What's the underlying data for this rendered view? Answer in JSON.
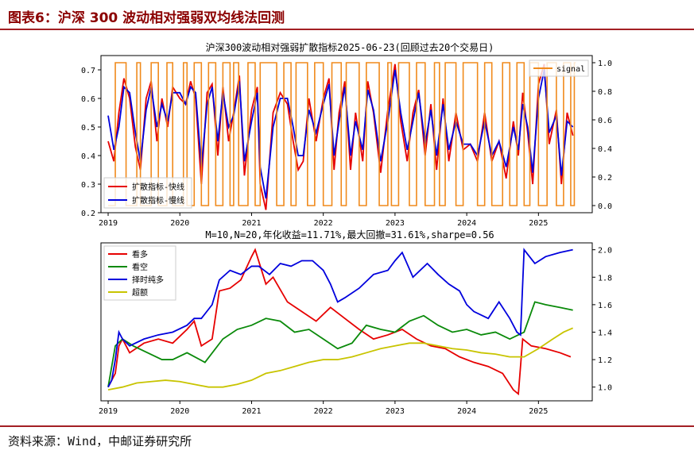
{
  "figure": {
    "title": "图表6：沪深 300 波动相对强弱双均线法回测",
    "source": "资料来源：Wind，中邮证券研究所"
  },
  "colors": {
    "brand_red": "#a31f24",
    "red": "#e60000",
    "blue": "#0000dd",
    "orange": "#f08a1c",
    "green": "#0a8a0a",
    "olive": "#c8c400"
  },
  "chart_data": [
    {
      "type": "line",
      "title": "沪深300波动相对强弱扩散指标2025-06-23(回顾过去20个交易日)",
      "x_ticks": [
        "2019",
        "2020",
        "2021",
        "2022",
        "2023",
        "2024",
        "2025"
      ],
      "xlim": [
        2018.9,
        2025.75
      ],
      "ylim_left": [
        0.2,
        0.75
      ],
      "ylim_right": [
        -0.05,
        1.05
      ],
      "y_ticks_left": [
        "0.2",
        "0.3",
        "0.4",
        "0.5",
        "0.6",
        "0.7"
      ],
      "y_ticks_right": [
        "0.0",
        "0.2",
        "0.4",
        "0.6",
        "0.8",
        "1.0"
      ],
      "legend_left": [
        "扩散指标-快线",
        "扩散指标-慢线"
      ],
      "legend_right": [
        "signal"
      ],
      "series": [
        {
          "name": "扩散指标-快线",
          "color": "red",
          "x": [
            2019.0,
            2019.08,
            2019.15,
            2019.22,
            2019.3,
            2019.38,
            2019.45,
            2019.53,
            2019.6,
            2019.68,
            2019.75,
            2019.83,
            2019.9,
            2020.0,
            2020.08,
            2020.15,
            2020.22,
            2020.3,
            2020.38,
            2020.45,
            2020.53,
            2020.6,
            2020.68,
            2020.75,
            2020.83,
            2020.9,
            2021.0,
            2021.08,
            2021.12,
            2021.2,
            2021.3,
            2021.4,
            2021.5,
            2021.58,
            2021.65,
            2021.72,
            2021.8,
            2021.9,
            2022.0,
            2022.08,
            2022.15,
            2022.22,
            2022.3,
            2022.38,
            2022.45,
            2022.55,
            2022.62,
            2022.7,
            2022.8,
            2022.9,
            2023.0,
            2023.08,
            2023.17,
            2023.25,
            2023.33,
            2023.42,
            2023.5,
            2023.58,
            2023.67,
            2023.75,
            2023.85,
            2023.95,
            2024.05,
            2024.15,
            2024.25,
            2024.35,
            2024.45,
            2024.55,
            2024.65,
            2024.72,
            2024.78,
            2024.85,
            2024.92,
            2025.0,
            2025.08,
            2025.15,
            2025.25,
            2025.32,
            2025.4,
            2025.48
          ],
          "y": [
            0.45,
            0.38,
            0.55,
            0.67,
            0.6,
            0.43,
            0.35,
            0.6,
            0.66,
            0.45,
            0.6,
            0.5,
            0.64,
            0.6,
            0.58,
            0.66,
            0.6,
            0.3,
            0.62,
            0.65,
            0.4,
            0.64,
            0.45,
            0.55,
            0.68,
            0.33,
            0.56,
            0.64,
            0.3,
            0.21,
            0.55,
            0.62,
            0.58,
            0.45,
            0.35,
            0.38,
            0.6,
            0.45,
            0.6,
            0.67,
            0.35,
            0.55,
            0.66,
            0.35,
            0.55,
            0.38,
            0.66,
            0.55,
            0.34,
            0.56,
            0.72,
            0.52,
            0.38,
            0.55,
            0.63,
            0.4,
            0.58,
            0.35,
            0.6,
            0.38,
            0.55,
            0.42,
            0.44,
            0.38,
            0.55,
            0.38,
            0.45,
            0.32,
            0.52,
            0.4,
            0.62,
            0.48,
            0.3,
            0.65,
            0.72,
            0.44,
            0.56,
            0.3,
            0.55,
            0.47
          ]
        },
        {
          "name": "扩散指标-慢线",
          "color": "blue",
          "x": [
            2019.0,
            2019.08,
            2019.15,
            2019.22,
            2019.3,
            2019.38,
            2019.45,
            2019.53,
            2019.6,
            2019.68,
            2019.75,
            2019.83,
            2019.9,
            2020.0,
            2020.08,
            2020.15,
            2020.22,
            2020.3,
            2020.38,
            2020.45,
            2020.53,
            2020.6,
            2020.68,
            2020.75,
            2020.83,
            2020.9,
            2021.0,
            2021.08,
            2021.12,
            2021.2,
            2021.3,
            2021.4,
            2021.5,
            2021.58,
            2021.65,
            2021.72,
            2021.8,
            2021.9,
            2022.0,
            2022.08,
            2022.15,
            2022.22,
            2022.3,
            2022.38,
            2022.45,
            2022.55,
            2022.62,
            2022.7,
            2022.8,
            2022.9,
            2023.0,
            2023.08,
            2023.17,
            2023.25,
            2023.33,
            2023.42,
            2023.5,
            2023.58,
            2023.67,
            2023.75,
            2023.85,
            2023.95,
            2024.05,
            2024.15,
            2024.25,
            2024.35,
            2024.45,
            2024.55,
            2024.65,
            2024.72,
            2024.78,
            2024.85,
            2024.92,
            2025.0,
            2025.08,
            2025.15,
            2025.25,
            2025.32,
            2025.4,
            2025.48
          ],
          "y": [
            0.54,
            0.42,
            0.5,
            0.64,
            0.62,
            0.48,
            0.38,
            0.56,
            0.64,
            0.5,
            0.58,
            0.52,
            0.62,
            0.62,
            0.58,
            0.64,
            0.62,
            0.36,
            0.58,
            0.64,
            0.45,
            0.62,
            0.5,
            0.54,
            0.66,
            0.38,
            0.52,
            0.62,
            0.36,
            0.25,
            0.5,
            0.6,
            0.6,
            0.5,
            0.4,
            0.4,
            0.56,
            0.48,
            0.58,
            0.65,
            0.4,
            0.52,
            0.64,
            0.4,
            0.52,
            0.42,
            0.63,
            0.56,
            0.38,
            0.52,
            0.7,
            0.55,
            0.42,
            0.52,
            0.62,
            0.44,
            0.56,
            0.4,
            0.58,
            0.42,
            0.52,
            0.44,
            0.44,
            0.4,
            0.52,
            0.4,
            0.45,
            0.36,
            0.5,
            0.42,
            0.58,
            0.5,
            0.34,
            0.6,
            0.7,
            0.48,
            0.54,
            0.33,
            0.52,
            0.5
          ]
        },
        {
          "name": "signal",
          "color": "orange",
          "axis": "right",
          "x": [
            2019.0,
            2019.1,
            2019.25,
            2019.4,
            2019.45,
            2019.6,
            2019.7,
            2019.82,
            2019.9,
            2020.05,
            2020.1,
            2020.2,
            2020.3,
            2020.4,
            2020.5,
            2020.6,
            2020.7,
            2020.75,
            2020.82,
            2020.95,
            2021.05,
            2021.12,
            2021.35,
            2021.45,
            2021.55,
            2021.62,
            2021.78,
            2021.88,
            2022.0,
            2022.12,
            2022.25,
            2022.32,
            2022.5,
            2022.6,
            2022.78,
            2022.9,
            2022.95,
            2023.05,
            2023.2,
            2023.3,
            2023.42,
            2023.55,
            2023.62,
            2023.7,
            2023.85,
            2023.95,
            2024.15,
            2024.25,
            2024.35,
            2024.5,
            2024.6,
            2024.7,
            2024.8,
            2024.88,
            2025.0,
            2025.12,
            2025.25,
            2025.35,
            2025.45,
            2025.5
          ],
          "y": [
            0,
            1,
            0,
            1,
            0,
            1,
            0,
            1,
            0,
            1,
            0,
            1,
            0,
            1,
            0,
            1,
            0,
            1,
            0,
            1,
            0,
            1,
            0,
            1,
            0,
            1,
            0,
            1,
            0,
            1,
            0,
            1,
            0,
            1,
            0,
            1,
            0,
            1,
            0,
            1,
            0,
            1,
            0,
            1,
            0,
            1,
            0,
            1,
            0,
            1,
            0,
            1,
            0,
            1,
            0,
            1,
            0,
            1,
            0,
            1
          ]
        }
      ]
    },
    {
      "type": "line",
      "title": "M=10,N=20,年化收益=11.71%,最大回撤=31.61%,sharpe=0.56",
      "x_ticks": [
        "2019",
        "2020",
        "2021",
        "2022",
        "2023",
        "2024",
        "2025"
      ],
      "xlim": [
        2018.9,
        2025.75
      ],
      "ylim": [
        0.9,
        2.05
      ],
      "y_ticks": [
        "1.0",
        "1.2",
        "1.4",
        "1.6",
        "1.8",
        "2.0"
      ],
      "legend": [
        "看多",
        "看空",
        "择时纯多",
        "超额"
      ],
      "series": [
        {
          "name": "看多",
          "color": "red",
          "x": [
            2019.0,
            2019.05,
            2019.1,
            2019.15,
            2019.2,
            2019.3,
            2019.5,
            2019.7,
            2019.9,
            2020.1,
            2020.2,
            2020.3,
            2020.45,
            2020.55,
            2020.7,
            2020.85,
            2021.0,
            2021.05,
            2021.2,
            2021.3,
            2021.5,
            2021.7,
            2021.9,
            2022.1,
            2022.3,
            2022.5,
            2022.7,
            2022.9,
            2023.1,
            2023.3,
            2023.5,
            2023.7,
            2023.9,
            2024.1,
            2024.3,
            2024.5,
            2024.65,
            2024.72,
            2024.78,
            2024.9,
            2025.1,
            2025.3,
            2025.45
          ],
          "y": [
            1.0,
            1.05,
            1.1,
            1.3,
            1.35,
            1.25,
            1.32,
            1.35,
            1.32,
            1.42,
            1.48,
            1.3,
            1.35,
            1.7,
            1.72,
            1.78,
            1.95,
            2.0,
            1.75,
            1.8,
            1.62,
            1.55,
            1.48,
            1.58,
            1.5,
            1.42,
            1.35,
            1.38,
            1.42,
            1.35,
            1.3,
            1.28,
            1.22,
            1.18,
            1.15,
            1.1,
            0.98,
            0.95,
            1.35,
            1.3,
            1.28,
            1.25,
            1.22
          ]
        },
        {
          "name": "看空",
          "color": "green",
          "x": [
            2019.0,
            2019.1,
            2019.2,
            2019.35,
            2019.55,
            2019.75,
            2019.9,
            2020.1,
            2020.35,
            2020.6,
            2020.8,
            2021.0,
            2021.2,
            2021.4,
            2021.6,
            2021.8,
            2022.0,
            2022.2,
            2022.4,
            2022.6,
            2022.8,
            2023.0,
            2023.2,
            2023.4,
            2023.6,
            2023.8,
            2024.0,
            2024.2,
            2024.4,
            2024.6,
            2024.8,
            2024.95,
            2025.1,
            2025.3,
            2025.48
          ],
          "y": [
            1.0,
            1.3,
            1.35,
            1.3,
            1.25,
            1.2,
            1.2,
            1.25,
            1.18,
            1.35,
            1.42,
            1.45,
            1.5,
            1.48,
            1.4,
            1.42,
            1.35,
            1.28,
            1.32,
            1.45,
            1.42,
            1.4,
            1.48,
            1.52,
            1.45,
            1.4,
            1.42,
            1.38,
            1.4,
            1.35,
            1.4,
            1.62,
            1.6,
            1.58,
            1.56
          ]
        },
        {
          "name": "择时纯多",
          "color": "blue",
          "x": [
            2019.0,
            2019.05,
            2019.1,
            2019.15,
            2019.2,
            2019.3,
            2019.5,
            2019.7,
            2019.9,
            2020.1,
            2020.2,
            2020.3,
            2020.45,
            2020.55,
            2020.7,
            2020.85,
            2021.0,
            2021.1,
            2021.25,
            2021.4,
            2021.55,
            2021.7,
            2021.85,
            2022.0,
            2022.1,
            2022.2,
            2022.3,
            2022.5,
            2022.7,
            2022.9,
            2023.0,
            2023.1,
            2023.25,
            2023.45,
            2023.6,
            2023.75,
            2023.9,
            2024.0,
            2024.1,
            2024.3,
            2024.45,
            2024.6,
            2024.7,
            2024.75,
            2024.8,
            2024.95,
            2025.1,
            2025.3,
            2025.48
          ],
          "y": [
            1.0,
            1.05,
            1.2,
            1.4,
            1.35,
            1.3,
            1.35,
            1.38,
            1.4,
            1.45,
            1.5,
            1.5,
            1.6,
            1.78,
            1.85,
            1.82,
            1.88,
            1.88,
            1.82,
            1.9,
            1.88,
            1.92,
            1.92,
            1.85,
            1.75,
            1.62,
            1.65,
            1.72,
            1.82,
            1.85,
            1.92,
            1.98,
            1.8,
            1.9,
            1.82,
            1.75,
            1.7,
            1.6,
            1.55,
            1.5,
            1.62,
            1.5,
            1.4,
            1.38,
            2.0,
            1.9,
            1.95,
            1.98,
            2.0
          ]
        },
        {
          "name": "超额",
          "color": "olive",
          "x": [
            2019.0,
            2019.2,
            2019.4,
            2019.6,
            2019.8,
            2020.0,
            2020.2,
            2020.4,
            2020.6,
            2020.8,
            2021.0,
            2021.2,
            2021.4,
            2021.6,
            2021.8,
            2022.0,
            2022.2,
            2022.4,
            2022.6,
            2022.8,
            2023.0,
            2023.2,
            2023.4,
            2023.6,
            2023.8,
            2024.0,
            2024.2,
            2024.4,
            2024.6,
            2024.8,
            2025.0,
            2025.2,
            2025.35,
            2025.48
          ],
          "y": [
            0.98,
            1.0,
            1.03,
            1.04,
            1.05,
            1.04,
            1.02,
            1.0,
            1.0,
            1.02,
            1.05,
            1.1,
            1.12,
            1.15,
            1.18,
            1.2,
            1.2,
            1.22,
            1.25,
            1.28,
            1.3,
            1.32,
            1.32,
            1.3,
            1.28,
            1.27,
            1.25,
            1.24,
            1.22,
            1.22,
            1.28,
            1.35,
            1.4,
            1.43
          ]
        }
      ]
    }
  ]
}
